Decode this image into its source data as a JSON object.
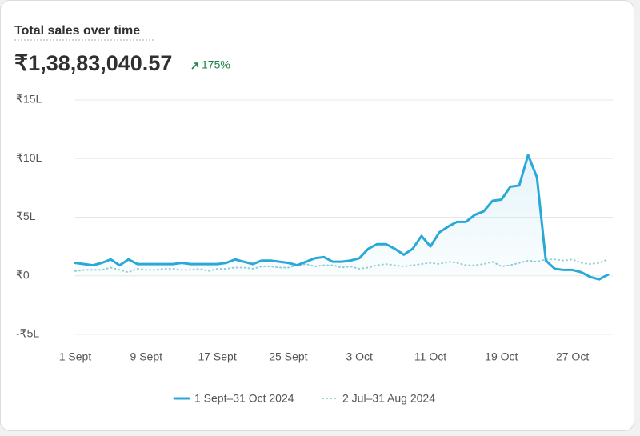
{
  "chart_data": {
    "type": "line",
    "title": "Total sales over time",
    "total": "₹1,38,83,040.57",
    "change": "175%",
    "categories": [
      "1 Sept",
      null,
      null,
      null,
      null,
      null,
      null,
      null,
      "9 Sept",
      null,
      null,
      null,
      null,
      null,
      null,
      null,
      "17 Sept",
      null,
      null,
      null,
      null,
      null,
      null,
      null,
      "25 Sept",
      null,
      null,
      null,
      null,
      null,
      null,
      null,
      "3 Oct",
      null,
      null,
      null,
      null,
      null,
      null,
      null,
      "11 Oct",
      null,
      null,
      null,
      null,
      null,
      null,
      null,
      "19 Oct",
      null,
      null,
      null,
      null,
      null,
      null,
      null,
      "27 Oct",
      null,
      null,
      null,
      null
    ],
    "series": [
      {
        "name": "1 Sept–31 Oct 2024",
        "color": "#2aa8d8",
        "style": "solid",
        "area": true,
        "values": [
          110000,
          100000,
          90000,
          110000,
          140000,
          90000,
          140000,
          100000,
          100000,
          100000,
          100000,
          100000,
          110000,
          100000,
          100000,
          100000,
          100000,
          110000,
          140000,
          120000,
          100000,
          130000,
          130000,
          120000,
          110000,
          90000,
          120000,
          150000,
          160000,
          120000,
          120000,
          130000,
          150000,
          230000,
          270000,
          270000,
          230000,
          180000,
          230000,
          340000,
          250000,
          370000,
          420000,
          460000,
          460000,
          520000,
          550000,
          640000,
          650000,
          760000,
          770000,
          1030000,
          840000,
          130000,
          60000,
          50000,
          50000,
          30000,
          -10000,
          -30000,
          10000
        ]
      },
      {
        "name": "2 Jul–31 Aug 2024",
        "color": "#8fcfd0",
        "style": "dotted",
        "area": false,
        "values": [
          40000,
          50000,
          50000,
          50000,
          70000,
          50000,
          30000,
          60000,
          50000,
          50000,
          60000,
          60000,
          50000,
          50000,
          60000,
          40000,
          60000,
          60000,
          70000,
          70000,
          60000,
          80000,
          80000,
          70000,
          70000,
          90000,
          100000,
          80000,
          90000,
          90000,
          70000,
          80000,
          60000,
          70000,
          90000,
          100000,
          90000,
          80000,
          90000,
          100000,
          110000,
          100000,
          120000,
          110000,
          90000,
          90000,
          100000,
          120000,
          80000,
          90000,
          110000,
          130000,
          120000,
          140000,
          140000,
          130000,
          140000,
          110000,
          100000,
          110000,
          140000
        ]
      }
    ],
    "ylim": [
      -500000,
      1500000
    ],
    "yticks": [
      {
        "value": -500000,
        "label": "-₹5L"
      },
      {
        "value": 0,
        "label": "₹0"
      },
      {
        "value": 500000,
        "label": "₹5L"
      },
      {
        "value": 1000000,
        "label": "₹10L"
      },
      {
        "value": 1500000,
        "label": "₹15L"
      }
    ],
    "grid": true
  }
}
